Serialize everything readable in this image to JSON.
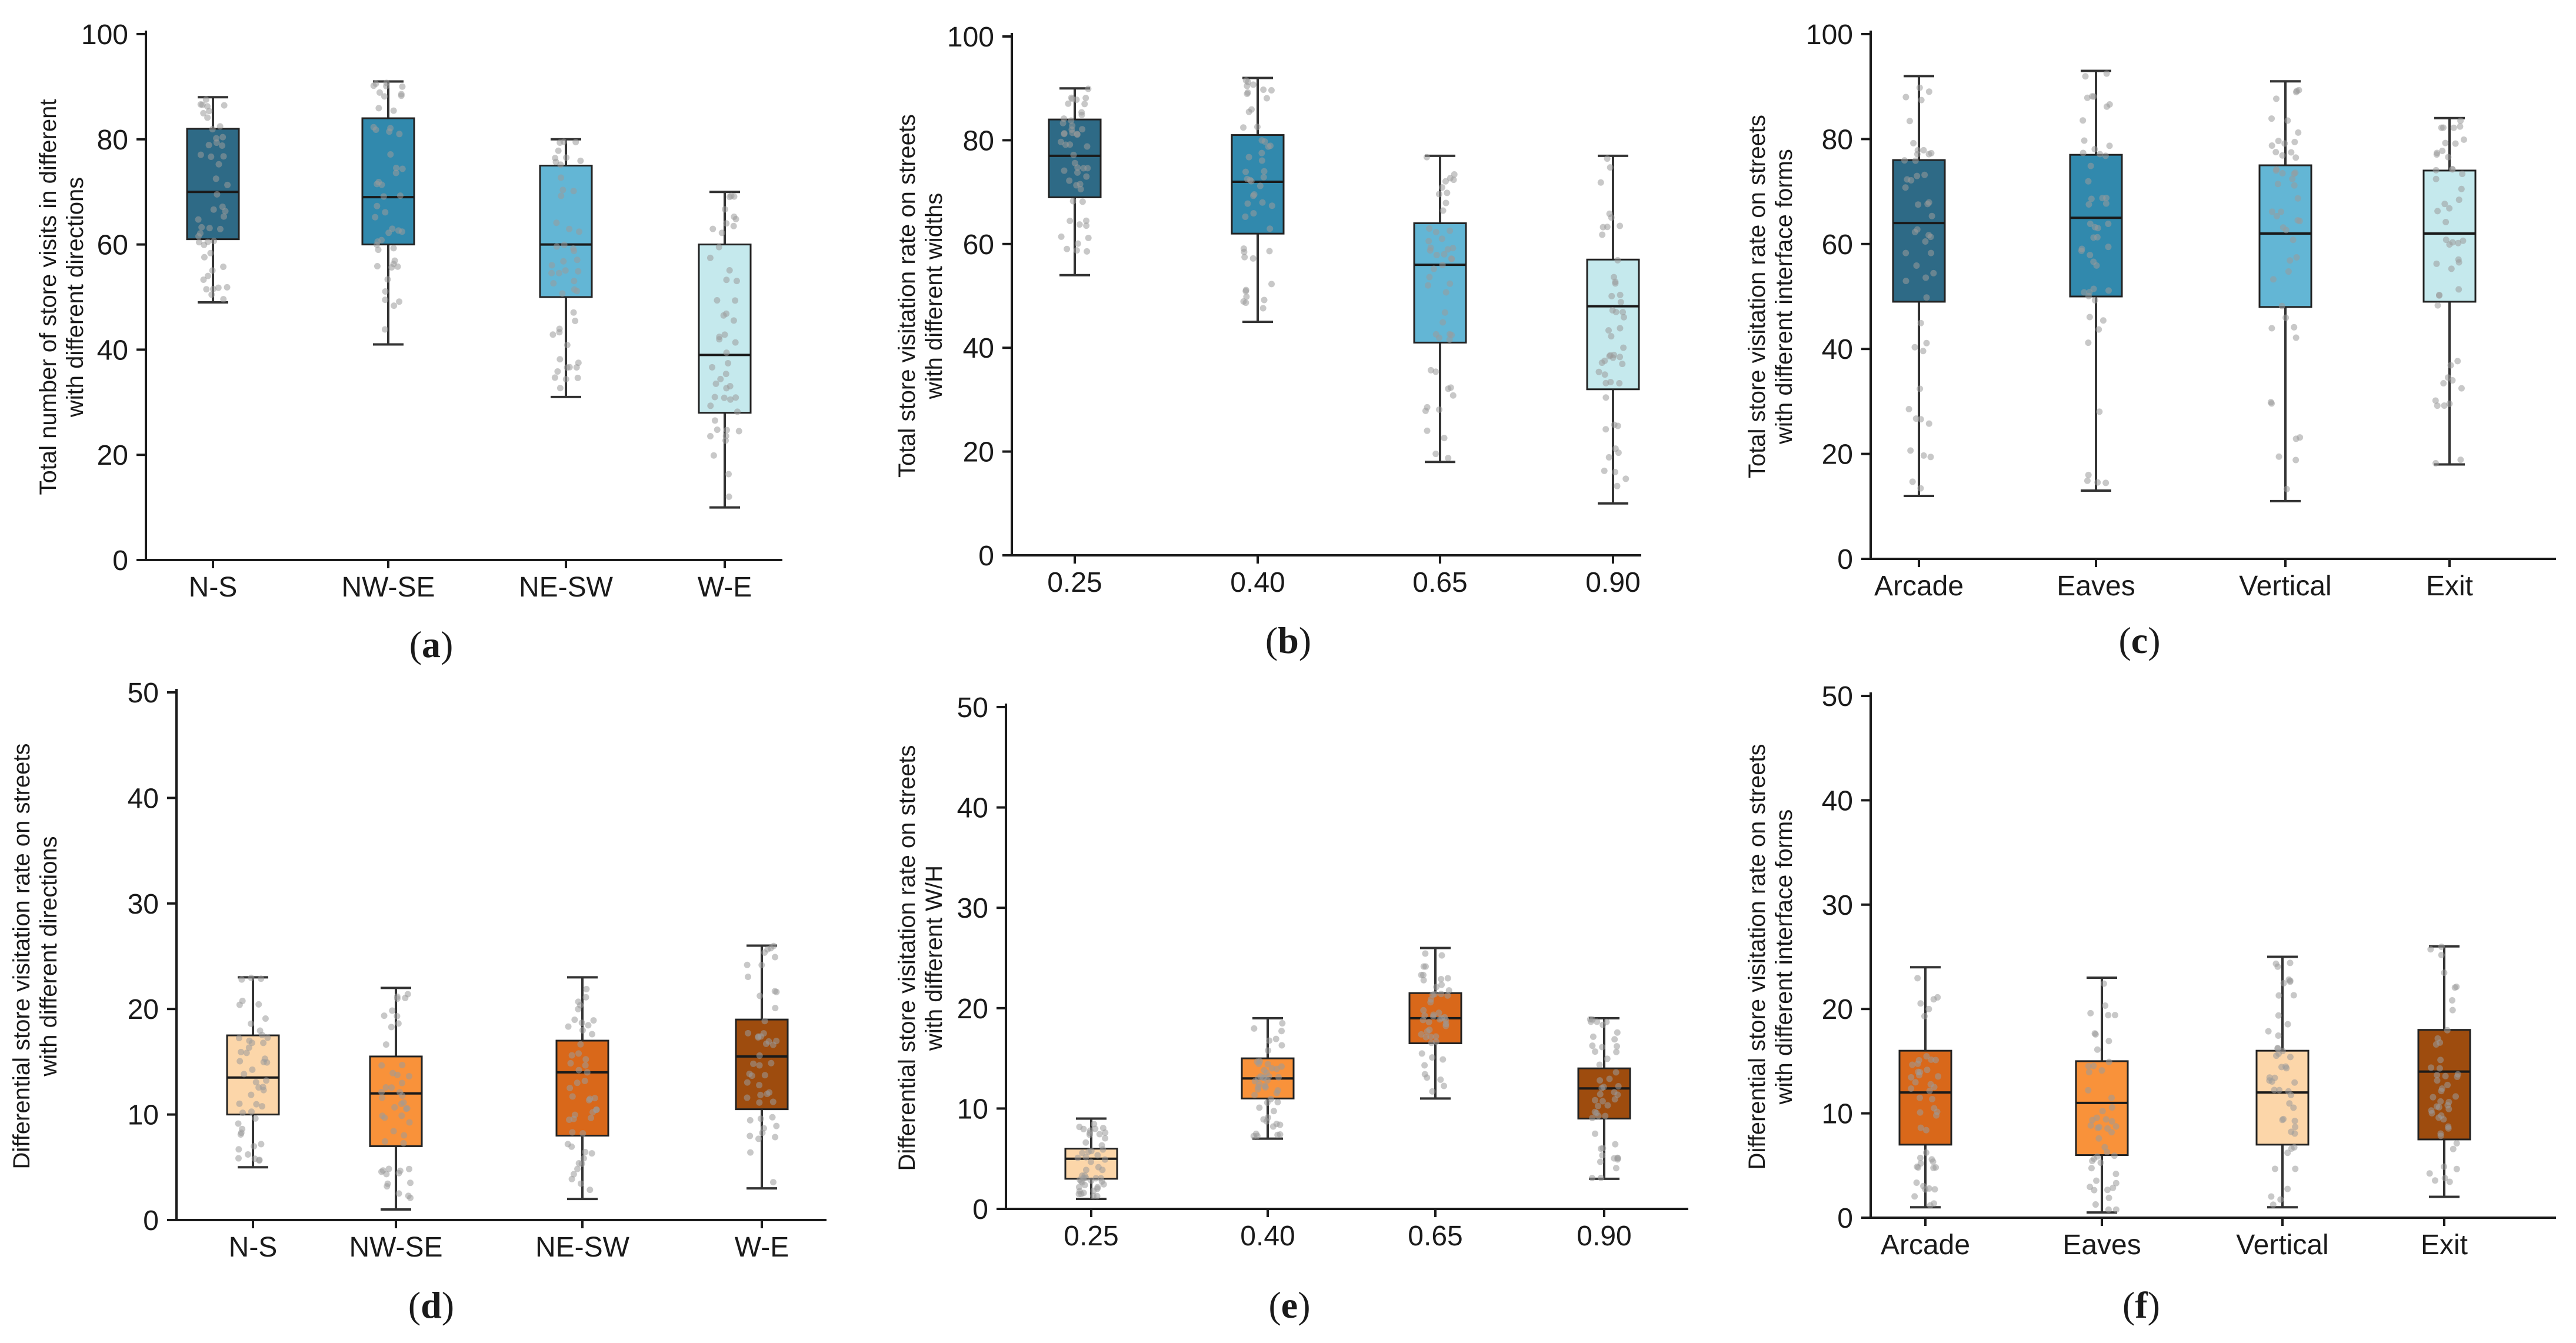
{
  "chart_data": [
    {
      "type": "box",
      "panel_label": "a",
      "ylabel_lines": [
        "Total number of store visits in different",
        "with different directions"
      ],
      "categories": [
        "N-S",
        "NW-SE",
        "NE-SW",
        "W-E"
      ],
      "ylim": [
        0,
        100
      ],
      "yticks": [
        "0",
        "20",
        "40",
        "60",
        "80",
        "100"
      ],
      "boxes": [
        {
          "min": 49,
          "q1": 61,
          "median": 70,
          "q3": 82,
          "max": 88,
          "color": "#2e6a86"
        },
        {
          "min": 41,
          "q1": 60,
          "median": 69,
          "q3": 84,
          "max": 91,
          "color": "#3189ad"
        },
        {
          "min": 31,
          "q1": 50,
          "median": 60,
          "q3": 75,
          "max": 80,
          "color": "#63b6d5"
        },
        {
          "min": 10,
          "q1": 28,
          "median": 39,
          "q3": 60,
          "max": 70,
          "color": "#c5e9ed"
        }
      ]
    },
    {
      "type": "box",
      "panel_label": "b",
      "ylabel_lines": [
        "Total store visitation rate on streets",
        "with different widths"
      ],
      "categories": [
        "0.25",
        "0.40",
        "0.65",
        "0.90"
      ],
      "ylim": [
        0,
        100
      ],
      "yticks": [
        "0",
        "20",
        "40",
        "60",
        "80",
        "100"
      ],
      "boxes": [
        {
          "min": 54,
          "q1": 69,
          "median": 77,
          "q3": 84,
          "max": 90,
          "color": "#2e6a86"
        },
        {
          "min": 45,
          "q1": 62,
          "median": 72,
          "q3": 81,
          "max": 92,
          "color": "#3189ad"
        },
        {
          "min": 18,
          "q1": 41,
          "median": 56,
          "q3": 64,
          "max": 77,
          "color": "#63b6d5"
        },
        {
          "min": 10,
          "q1": 32,
          "median": 48,
          "q3": 57,
          "max": 77,
          "color": "#c5e9ed"
        }
      ]
    },
    {
      "type": "box",
      "panel_label": "c",
      "ylabel_lines": [
        "Total store visitation rate on streets",
        "with different interface forms"
      ],
      "categories": [
        "Arcade",
        "Eaves",
        "Vertical",
        "Exit"
      ],
      "ylim": [
        0,
        100
      ],
      "yticks": [
        "0",
        "20",
        "40",
        "60",
        "80",
        "100"
      ],
      "boxes": [
        {
          "min": 12,
          "q1": 49,
          "median": 64,
          "q3": 76,
          "max": 92,
          "color": "#2e6a86"
        },
        {
          "min": 13,
          "q1": 50,
          "median": 65,
          "q3": 77,
          "max": 93,
          "color": "#3189ad"
        },
        {
          "min": 11,
          "q1": 48,
          "median": 62,
          "q3": 75,
          "max": 91,
          "color": "#63b6d5"
        },
        {
          "min": 18,
          "q1": 49,
          "median": 62,
          "q3": 74,
          "max": 84,
          "color": "#c5e9ed"
        }
      ]
    },
    {
      "type": "box",
      "panel_label": "d",
      "ylabel_lines": [
        "Differential store visitation rate on streets",
        "with different directions"
      ],
      "categories": [
        "N-S",
        "NW-SE",
        "NE-SW",
        "W-E"
      ],
      "ylim": [
        0,
        50
      ],
      "yticks": [
        "0",
        "10",
        "20",
        "30",
        "40",
        "50"
      ],
      "boxes": [
        {
          "min": 5,
          "q1": 10,
          "median": 13.5,
          "q3": 17.5,
          "max": 23,
          "color": "#fcd6a9"
        },
        {
          "min": 1,
          "q1": 7,
          "median": 12,
          "q3": 15.5,
          "max": 22,
          "color": "#f9923a"
        },
        {
          "min": 2,
          "q1": 8,
          "median": 14,
          "q3": 17,
          "max": 23,
          "color": "#d9681a"
        },
        {
          "min": 3,
          "q1": 10.5,
          "median": 15.5,
          "q3": 19,
          "max": 26,
          "color": "#9e4c0e"
        }
      ]
    },
    {
      "type": "box",
      "panel_label": "e",
      "ylabel_lines": [
        "Differential store visitation rate on streets",
        "with different  W/H"
      ],
      "categories": [
        "0.25",
        "0.40",
        "0.65",
        "0.90"
      ],
      "ylim": [
        0,
        50
      ],
      "yticks": [
        "0",
        "10",
        "20",
        "30",
        "40",
        "50"
      ],
      "boxes": [
        {
          "min": 1,
          "q1": 3,
          "median": 5,
          "q3": 6,
          "max": 9,
          "color": "#fcd6a9"
        },
        {
          "min": 7,
          "q1": 11,
          "median": 13,
          "q3": 15,
          "max": 19,
          "color": "#f9923a"
        },
        {
          "min": 11,
          "q1": 16.5,
          "median": 19,
          "q3": 21.5,
          "max": 26,
          "color": "#d9681a"
        },
        {
          "min": 3,
          "q1": 9,
          "median": 12,
          "q3": 14,
          "max": 19,
          "color": "#9e4c0e"
        }
      ]
    },
    {
      "type": "box",
      "panel_label": "f",
      "ylabel_lines": [
        "Differential store visitation rate on streets",
        "with different interface forms"
      ],
      "categories": [
        "Arcade",
        "Eaves",
        "Vertical",
        "Exit"
      ],
      "ylim": [
        0,
        50
      ],
      "yticks": [
        "0",
        "10",
        "20",
        "30",
        "40",
        "50"
      ],
      "boxes": [
        {
          "min": 1,
          "q1": 7,
          "median": 12,
          "q3": 16,
          "max": 24,
          "color": "#d9681a"
        },
        {
          "min": 0.5,
          "q1": 6,
          "median": 11,
          "q3": 15,
          "max": 23,
          "color": "#f9923a"
        },
        {
          "min": 1,
          "q1": 7,
          "median": 12,
          "q3": 16,
          "max": 25,
          "color": "#fcd6a9"
        },
        {
          "min": 2,
          "q1": 7.5,
          "median": 14,
          "q3": 18,
          "max": 26,
          "color": "#9e4c0e"
        }
      ]
    }
  ],
  "colors": {
    "axis": "#1a1a1a",
    "whisker": "#333333",
    "median": "#1a1a1a",
    "points": "#9a9a9a"
  }
}
